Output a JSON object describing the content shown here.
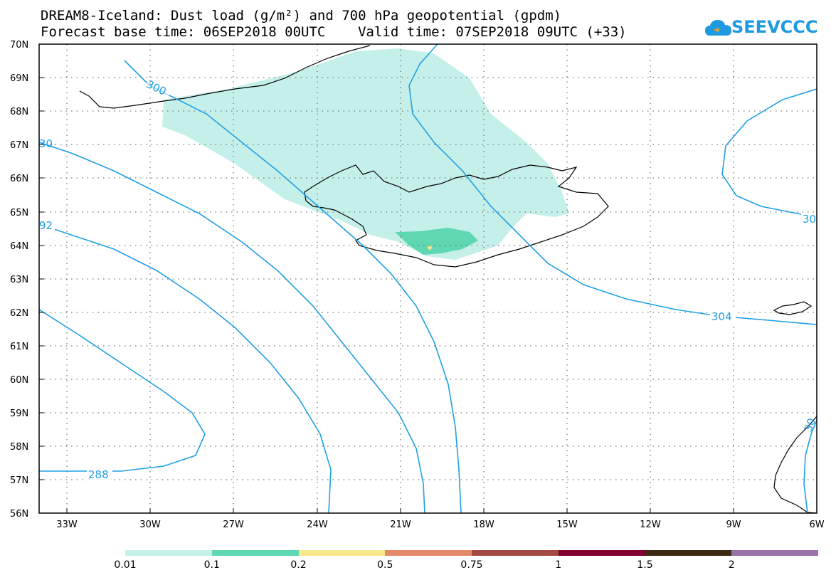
{
  "header": {
    "title_line1": "DREAM8-Iceland: Dust load (g/m²) and 700 hPa geopotential (gpdm)",
    "title_line2": "Forecast base time: 06SEP2018 00UTC    Valid time: 07SEP2018 09UTC (+33)",
    "logo_text": "SEEVCCC",
    "logo_icon": "cloud-icon"
  },
  "map": {
    "region": "Iceland",
    "lat_labels": [
      "70N",
      "69N",
      "68N",
      "67N",
      "66N",
      "65N",
      "64N",
      "63N",
      "62N",
      "61N",
      "60N",
      "59N",
      "58N",
      "57N",
      "56N"
    ],
    "lon_labels": [
      "33W",
      "30W",
      "27W",
      "24W",
      "21W",
      "18W",
      "15W",
      "12W",
      "9W",
      "6W"
    ],
    "contour_labels": [
      "300",
      "288",
      "304",
      "92",
      "30",
      "30",
      "300",
      "30"
    ],
    "dust_colors": {
      "light": "#c5f0ea",
      "medium": "#5fd7b3",
      "yellow": "#f0e48a"
    },
    "contour_color": "#1ea0e6"
  },
  "colorbar": {
    "colors": [
      "#c5f0ea",
      "#5fd7b3",
      "#f5e98a",
      "#e48a6a",
      "#a44a44",
      "#800030",
      "#3c2a14",
      "#9a72a8"
    ],
    "labels": [
      "0.01",
      "0.1",
      "0.2",
      "0.5",
      "0.75",
      "1",
      "1.5",
      "2"
    ]
  }
}
